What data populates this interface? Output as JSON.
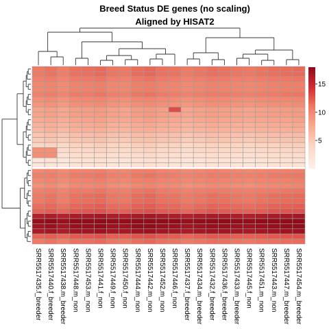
{
  "chart_data": {
    "type": "heatmap",
    "title_lines": [
      "Breed Status DE genes (no scaling)",
      "Aligned by HISAT2"
    ],
    "columns": [
      "SRR5517435.f_breeder",
      "SRR5517440.f_breeder",
      "SRR5517438.m_breeder",
      "SRR5517448.m_non",
      "SRR5517453.m_non",
      "SRR5517441.f_non",
      "SRR5517449.f_non",
      "SRR5517450.f_non",
      "SRR5517444.m_non",
      "SRR5517442.m_non",
      "SRR5517452.m_non",
      "SRR5517446.f_non",
      "SRR5517437.f_breeder",
      "SRR5517434.m_breeder",
      "SRR5517432.f_breeder",
      "SRR5517436.f_breeder",
      "SRR5517433.m_breeder",
      "SRR5517445.f_non",
      "SRR5517451.m_non",
      "SRR5517443.m_non",
      "SRR5517447.m_breeder",
      "SRR5517454.m_breeder"
    ],
    "row_count": 35,
    "row_base_values": [
      11,
      11,
      10.5,
      10,
      10,
      10.5,
      9.5,
      9,
      8,
      8,
      7.5,
      7,
      6.5,
      5.5,
      5,
      4,
      3.5,
      2.5,
      2,
      1.5,
      10,
      10.5,
      10,
      9.5,
      10.5,
      11,
      11,
      11.5,
      12,
      16,
      17.5,
      17,
      16.5,
      12,
      11
    ],
    "column_offsets": [
      0,
      0.3,
      -0.2,
      0.4,
      0.5,
      0.7,
      0.2,
      0.1,
      0.6,
      0.8,
      0.4,
      0.3,
      -0.1,
      0.2,
      0.5,
      0.4,
      0.2,
      0.1,
      0.3,
      0.5,
      0.6,
      0.7
    ],
    "color_scale": {
      "min": 0,
      "max": 18,
      "stops": [
        {
          "value": 0,
          "color": "#fef0ea"
        },
        {
          "value": 4,
          "color": "#fcd7c4"
        },
        {
          "value": 8,
          "color": "#f8a48b"
        },
        {
          "value": 11,
          "color": "#f07a63"
        },
        {
          "value": 14,
          "color": "#d6343a"
        },
        {
          "value": 18,
          "color": "#8c0a19"
        }
      ],
      "ticks": [
        5,
        10,
        15
      ]
    }
  }
}
